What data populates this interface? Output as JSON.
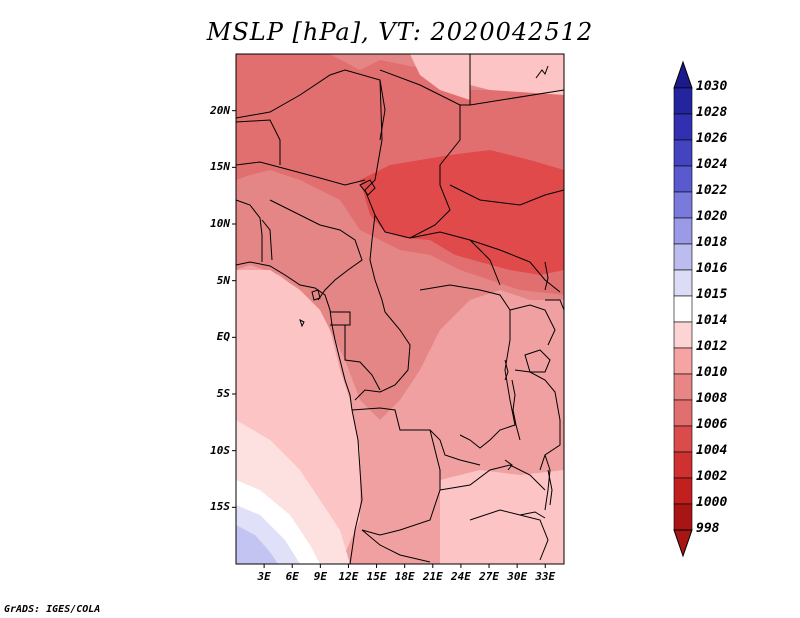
{
  "title": "MSLP [hPa], VT: 2020042512",
  "footer": "GrADS: IGES/COLA",
  "map": {
    "variable": "MSLP",
    "units": "hPa",
    "valid_time": "2020042512",
    "lon_range": [
      0,
      35
    ],
    "lat_range": [
      -20,
      25
    ],
    "lat_ticks": [
      {
        "value": 20,
        "label": "20N"
      },
      {
        "value": 15,
        "label": "15N"
      },
      {
        "value": 10,
        "label": "10N"
      },
      {
        "value": 5,
        "label": "5N"
      },
      {
        "value": 0,
        "label": "EQ"
      },
      {
        "value": -5,
        "label": "5S"
      },
      {
        "value": -10,
        "label": "10S"
      },
      {
        "value": -15,
        "label": "15S"
      }
    ],
    "lon_ticks": [
      {
        "value": 3,
        "label": "3E"
      },
      {
        "value": 6,
        "label": "6E"
      },
      {
        "value": 9,
        "label": "9E"
      },
      {
        "value": 12,
        "label": "12E"
      },
      {
        "value": 15,
        "label": "15E"
      },
      {
        "value": 18,
        "label": "18E"
      },
      {
        "value": 21,
        "label": "21E"
      },
      {
        "value": 24,
        "label": "24E"
      },
      {
        "value": 27,
        "label": "27E"
      },
      {
        "value": 30,
        "label": "30E"
      },
      {
        "value": 33,
        "label": "33E"
      }
    ]
  },
  "colorbar": {
    "labels": [
      "1030",
      "1028",
      "1026",
      "1024",
      "1022",
      "1020",
      "1018",
      "1016",
      "1015",
      "1014",
      "1012",
      "1010",
      "1008",
      "1006",
      "1004",
      "1002",
      "1000",
      "998"
    ],
    "colors": [
      "#1a1a8c",
      "#24249f",
      "#3030b0",
      "#4444c0",
      "#5a5ad0",
      "#7a7add",
      "#9a9ae6",
      "#bcbcee",
      "#dcdcf6",
      "#ffffff",
      "#fcd4d4",
      "#f5a3a3",
      "#e88585",
      "#e26f6f",
      "#da4c4c",
      "#cf3030",
      "#c21f1f",
      "#a81515"
    ],
    "top_arrow_color": "#1a1a8c",
    "bottom_arrow_color": "#a81515"
  },
  "shading": {
    "background": "#f0a0a0",
    "levels": {
      "l1003": "#e04a4a",
      "l1005": "#e26f6f",
      "l1007": "#e58686",
      "l1009": "#f5a3a3",
      "l1011": "#fcc4c4",
      "l1013": "#fde0e0",
      "l1014": "#ffffff",
      "l1015": "#e0e0f8",
      "l1016": "#c4c4f2"
    }
  }
}
